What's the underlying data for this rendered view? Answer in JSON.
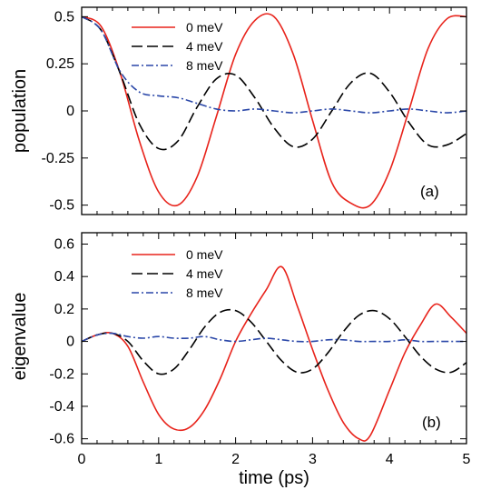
{
  "chart_data": [
    {
      "type": "line",
      "panel_label": "(a)",
      "xlabel": "",
      "ylabel": "population",
      "xlim": [
        0,
        5
      ],
      "ylim": [
        -0.55,
        0.55
      ],
      "yticks": [
        -0.5,
        -0.25,
        0,
        0.25,
        0.5
      ],
      "ytick_labels": [
        "-0.5",
        "-0.25",
        "0",
        "0.25",
        "0.5"
      ],
      "legend": "top-left",
      "series": [
        {
          "name": "0 meV",
          "color": "#e8231b",
          "dash": "solid",
          "x": [
            0,
            0.25,
            0.5,
            0.75,
            1.0,
            1.25,
            1.5,
            1.75,
            2.0,
            2.25,
            2.5,
            2.75,
            3.0,
            3.25,
            3.5,
            3.75,
            4.0,
            4.25,
            4.5,
            4.75,
            5.0
          ],
          "y": [
            0.5,
            0.45,
            0.2,
            -0.16,
            -0.43,
            -0.5,
            -0.35,
            -0.03,
            0.3,
            0.48,
            0.5,
            0.3,
            -0.05,
            -0.38,
            -0.49,
            -0.5,
            -0.32,
            0.0,
            0.33,
            0.49,
            0.5
          ]
        },
        {
          "name": "4 meV",
          "color": "#000000",
          "dash": "dashed",
          "x": [
            0,
            0.25,
            0.5,
            0.75,
            1.0,
            1.25,
            1.5,
            1.75,
            2.0,
            2.25,
            2.5,
            2.75,
            3.0,
            3.25,
            3.5,
            3.75,
            4.0,
            4.25,
            4.5,
            4.75,
            5.0
          ],
          "y": [
            0.5,
            0.43,
            0.2,
            -0.07,
            -0.2,
            -0.16,
            0.02,
            0.17,
            0.19,
            0.07,
            -0.09,
            -0.19,
            -0.15,
            0.0,
            0.15,
            0.2,
            0.1,
            -0.06,
            -0.18,
            -0.18,
            -0.12
          ]
        },
        {
          "name": "8 meV",
          "color": "#2a47a8",
          "dash": "dashdot",
          "x": [
            0,
            0.25,
            0.5,
            0.75,
            1.0,
            1.25,
            1.5,
            1.75,
            2.0,
            2.25,
            2.5,
            2.75,
            3.0,
            3.25,
            3.5,
            3.75,
            4.0,
            4.25,
            4.5,
            4.75,
            5.0
          ],
          "y": [
            0.5,
            0.43,
            0.21,
            0.1,
            0.08,
            0.07,
            0.04,
            0.01,
            0.0,
            0.01,
            0.0,
            -0.01,
            0.0,
            0.01,
            0.0,
            -0.01,
            0.0,
            0.01,
            0.0,
            -0.01,
            0.0
          ]
        }
      ]
    },
    {
      "type": "line",
      "panel_label": "(b)",
      "xlabel": "time (ps)",
      "ylabel": "eigenvalue",
      "xlim": [
        0,
        5
      ],
      "ylim": [
        -0.63,
        0.67
      ],
      "xticks": [
        0,
        1,
        2,
        3,
        4,
        5
      ],
      "xtick_labels": [
        "0",
        "1",
        "2",
        "3",
        "4",
        "5"
      ],
      "yticks": [
        -0.6,
        -0.4,
        -0.2,
        0,
        0.2,
        0.4,
        0.6
      ],
      "ytick_labels": [
        "-0.6",
        "-0.4",
        "-0.2",
        "0",
        "0.2",
        "0.4",
        "0.6"
      ],
      "legend": "top-left",
      "series": [
        {
          "name": "0 meV",
          "color": "#e8231b",
          "dash": "solid",
          "x": [
            0,
            0.2,
            0.4,
            0.6,
            0.8,
            1.0,
            1.2,
            1.4,
            1.6,
            1.8,
            2.0,
            2.2,
            2.4,
            2.6,
            2.8,
            3.0,
            3.2,
            3.4,
            3.6,
            3.75,
            4.0,
            4.2,
            4.4,
            4.6,
            4.8,
            5.0
          ],
          "y": [
            0,
            0.04,
            0.05,
            -0.03,
            -0.25,
            -0.45,
            -0.54,
            -0.53,
            -0.42,
            -0.23,
            0.0,
            0.17,
            0.32,
            0.46,
            0.22,
            -0.05,
            -0.3,
            -0.5,
            -0.6,
            -0.58,
            -0.3,
            -0.07,
            0.1,
            0.23,
            0.15,
            0.05
          ]
        },
        {
          "name": "4 meV",
          "color": "#000000",
          "dash": "dashed",
          "x": [
            0,
            0.2,
            0.4,
            0.6,
            0.8,
            1.0,
            1.2,
            1.4,
            1.6,
            1.8,
            2.0,
            2.2,
            2.4,
            2.6,
            2.8,
            3.0,
            3.2,
            3.4,
            3.6,
            3.8,
            4.0,
            4.2,
            4.4,
            4.6,
            4.8,
            5.0
          ],
          "y": [
            0,
            0.04,
            0.05,
            0.0,
            -0.12,
            -0.2,
            -0.17,
            -0.05,
            0.09,
            0.18,
            0.19,
            0.12,
            0.0,
            -0.12,
            -0.19,
            -0.17,
            -0.07,
            0.06,
            0.16,
            0.19,
            0.14,
            0.03,
            -0.09,
            -0.17,
            -0.19,
            -0.13
          ]
        },
        {
          "name": "8 meV",
          "color": "#2a47a8",
          "dash": "dashdot",
          "x": [
            0,
            0.2,
            0.4,
            0.6,
            0.8,
            1.0,
            1.2,
            1.4,
            1.6,
            1.8,
            2.0,
            2.2,
            2.4,
            2.6,
            2.8,
            3.0,
            3.2,
            3.4,
            3.6,
            3.8,
            4.0,
            4.2,
            4.4,
            4.6,
            4.8,
            5.0
          ],
          "y": [
            0,
            0.04,
            0.05,
            0.03,
            0.02,
            0.03,
            0.02,
            0.02,
            0.03,
            0.01,
            0.0,
            0.01,
            0.02,
            0.01,
            0.0,
            0.0,
            0.01,
            0.01,
            0.0,
            0.0,
            0.0,
            0.01,
            0.0,
            0.0,
            0.0,
            0.0
          ]
        }
      ]
    }
  ]
}
